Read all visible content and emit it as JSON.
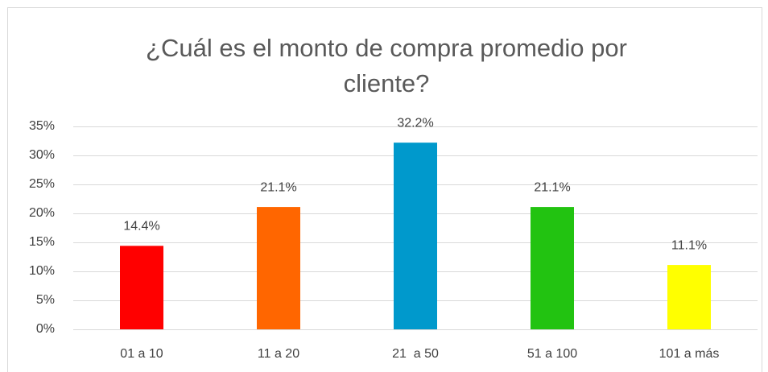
{
  "chart_data": {
    "type": "bar",
    "title": "¿Cuál es el monto de compra promedio por cliente?",
    "categories": [
      "01 a 10",
      "11 a 20",
      "21  a 50",
      "51 a 100",
      "101 a más"
    ],
    "values": [
      14.4,
      21.1,
      32.2,
      21.1,
      11.1
    ],
    "value_labels": [
      "14.4%",
      "21.1%",
      "32.2%",
      "21.1%",
      "11.1%"
    ],
    "colors": [
      "#ff0000",
      "#ff6600",
      "#0099cc",
      "#22c311",
      "#ffff00"
    ],
    "ylim": [
      0,
      35
    ],
    "yticks": [
      {
        "value": 0,
        "label": "0%"
      },
      {
        "value": 5,
        "label": "5%"
      },
      {
        "value": 10,
        "label": "10%"
      },
      {
        "value": 15,
        "label": "15%"
      },
      {
        "value": 20,
        "label": "20%"
      },
      {
        "value": 25,
        "label": "25%"
      },
      {
        "value": 30,
        "label": "30%"
      },
      {
        "value": 35,
        "label": "35%"
      }
    ],
    "grid": true
  }
}
